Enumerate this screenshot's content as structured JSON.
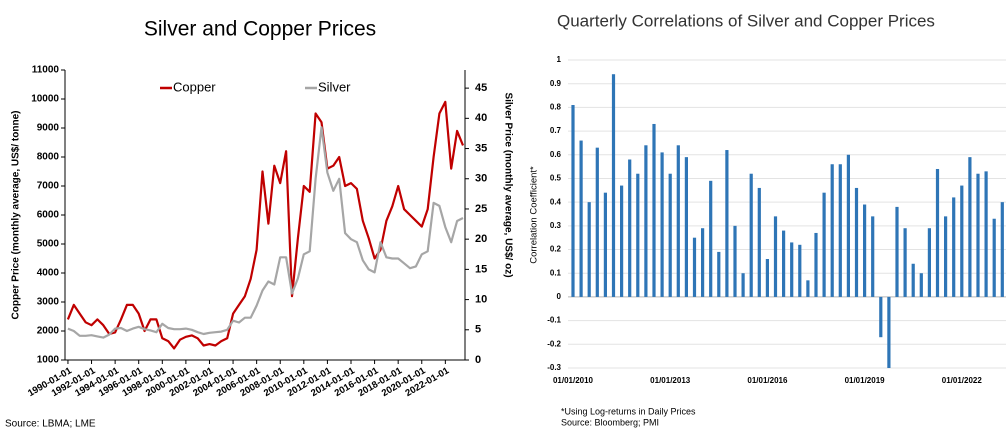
{
  "chart_data": [
    {
      "type": "line",
      "title": "Silver and Copper Prices",
      "x": [
        "1990-01-01",
        "1990-07-01",
        "1991-01-01",
        "1991-07-01",
        "1992-01-01",
        "1992-07-01",
        "1993-01-01",
        "1993-07-01",
        "1994-01-01",
        "1994-07-01",
        "1995-01-01",
        "1995-07-01",
        "1996-01-01",
        "1996-07-01",
        "1997-01-01",
        "1997-07-01",
        "1998-01-01",
        "1998-07-01",
        "1999-01-01",
        "1999-07-01",
        "2000-01-01",
        "2000-07-01",
        "2001-01-01",
        "2001-07-01",
        "2002-01-01",
        "2002-07-01",
        "2003-01-01",
        "2003-07-01",
        "2004-01-01",
        "2004-07-01",
        "2005-01-01",
        "2005-07-01",
        "2006-01-01",
        "2006-07-01",
        "2007-01-01",
        "2007-07-01",
        "2008-01-01",
        "2008-07-01",
        "2009-01-01",
        "2009-07-01",
        "2010-01-01",
        "2010-07-01",
        "2011-01-01",
        "2011-07-01",
        "2012-01-01",
        "2012-07-01",
        "2013-01-01",
        "2013-07-01",
        "2014-01-01",
        "2014-07-01",
        "2015-01-01",
        "2015-07-01",
        "2016-01-01",
        "2016-07-01",
        "2017-01-01",
        "2017-07-01",
        "2018-01-01",
        "2018-07-01",
        "2019-01-01",
        "2019-07-01",
        "2020-01-01",
        "2020-07-01",
        "2021-01-01",
        "2021-07-01",
        "2022-01-01",
        "2022-07-01",
        "2023-01-01",
        "2023-07-01"
      ],
      "series": [
        {
          "name": "Copper",
          "color": "#c00000",
          "values": [
            2400,
            2900,
            2600,
            2300,
            2200,
            2400,
            2200,
            1900,
            1950,
            2400,
            2900,
            2900,
            2600,
            2000,
            2400,
            2400,
            1750,
            1650,
            1400,
            1700,
            1800,
            1850,
            1750,
            1500,
            1550,
            1500,
            1650,
            1750,
            2600,
            2900,
            3200,
            3800,
            4800,
            7500,
            5700,
            7700,
            7100,
            8200,
            3200,
            5200,
            7000,
            6800,
            9500,
            9200,
            7600,
            7700,
            8000,
            7000,
            7100,
            6900,
            5800,
            5200,
            4500,
            4800,
            5800,
            6300,
            7000,
            6200,
            6000,
            5800,
            5600,
            6200,
            8000,
            9500,
            9900,
            7600,
            8900,
            8400
          ]
        },
        {
          "name": "Silver",
          "color": "#a6a6a6",
          "axis": "y2",
          "values": [
            5.2,
            4.8,
            4.0,
            4.0,
            4.1,
            3.9,
            3.7,
            4.2,
            5.2,
            5.3,
            4.8,
            5.2,
            5.5,
            5.1,
            4.9,
            4.6,
            6.0,
            5.3,
            5.1,
            5.1,
            5.2,
            5.0,
            4.6,
            4.3,
            4.5,
            4.6,
            4.7,
            5.0,
            6.5,
            6.2,
            7.0,
            7.0,
            9.0,
            11.5,
            13.0,
            12.5,
            17.0,
            17.0,
            11.0,
            13.5,
            17.5,
            18.0,
            30.0,
            38.5,
            31.0,
            28.0,
            30.0,
            21.0,
            20.0,
            19.5,
            16.5,
            15.0,
            14.5,
            19.5,
            17.0,
            16.8,
            16.8,
            16.0,
            15.2,
            15.5,
            17.5,
            18.0,
            26.0,
            25.5,
            22.0,
            19.5,
            23.0,
            23.5
          ]
        }
      ],
      "xlim": [
        "1989-10-01",
        "2023-09-01"
      ],
      "xticks": [
        "1990-01-01",
        "1992-01-01",
        "1994-01-01",
        "1996-01-01",
        "1998-01-01",
        "2000-01-01",
        "2002-01-01",
        "2004-01-01",
        "2006-01-01",
        "2008-01-01",
        "2010-01-01",
        "2012-01-01",
        "2014-01-01",
        "2016-01-01",
        "2018-01-01",
        "2020-01-01",
        "2022-01-01"
      ],
      "ylim": [
        1000,
        11000
      ],
      "yticks": [
        1000,
        2000,
        3000,
        4000,
        5000,
        6000,
        7000,
        8000,
        9000,
        10000,
        11000
      ],
      "y2lim": [
        0,
        48
      ],
      "y2ticks": [
        0,
        5,
        10,
        15,
        20,
        25,
        30,
        35,
        40,
        45
      ],
      "ylabel": "Copper Price (monthly average, US$/ tonne)",
      "y2label": "Silver Price (monthly average, US$/ oz)",
      "source": "Source: LBMA; LME"
    },
    {
      "type": "bar",
      "title": "Quarterly Correlations of Silver and Copper Prices",
      "categories": [
        "01/01/2010",
        null,
        null,
        null,
        null,
        null,
        null,
        null,
        null,
        null,
        null,
        null,
        "01/01/2013",
        null,
        null,
        null,
        null,
        null,
        null,
        null,
        null,
        null,
        null,
        null,
        "01/01/2016",
        null,
        null,
        null,
        null,
        null,
        null,
        null,
        null,
        null,
        null,
        null,
        "01/01/2019",
        null,
        null,
        null,
        null,
        null,
        null,
        null,
        null,
        null,
        null,
        null,
        "01/01/2022",
        null,
        null,
        null,
        null,
        null
      ],
      "values": [
        0.81,
        0.66,
        0.4,
        0.63,
        0.44,
        0.94,
        0.47,
        0.58,
        0.52,
        0.64,
        0.73,
        0.61,
        0.52,
        0.64,
        0.59,
        0.25,
        0.29,
        0.49,
        0.19,
        0.62,
        0.3,
        0.1,
        0.52,
        0.46,
        0.16,
        0.34,
        0.28,
        0.23,
        0.22,
        0.07,
        0.27,
        0.44,
        0.56,
        0.56,
        0.6,
        0.46,
        0.39,
        0.34,
        -0.17,
        -0.3,
        0.38,
        0.29,
        0.14,
        0.1,
        0.29,
        0.54,
        0.34,
        0.42,
        0.47,
        0.59,
        0.52,
        0.53,
        0.33,
        0.4
      ],
      "color": "#2e75b6",
      "ylim": [
        -0.3,
        1
      ],
      "yticks": [
        1,
        0.9,
        0.8,
        0.7,
        0.6,
        0.5,
        0.4,
        0.3,
        0.2,
        0.1,
        0,
        -0.1,
        -0.2,
        -0.3
      ],
      "grid": true,
      "ylabel": "Correlation Coefficient*",
      "notes": [
        "*Using Log-returns in Daily Prices",
        "Source: Bloomberg; PMI"
      ]
    }
  ]
}
